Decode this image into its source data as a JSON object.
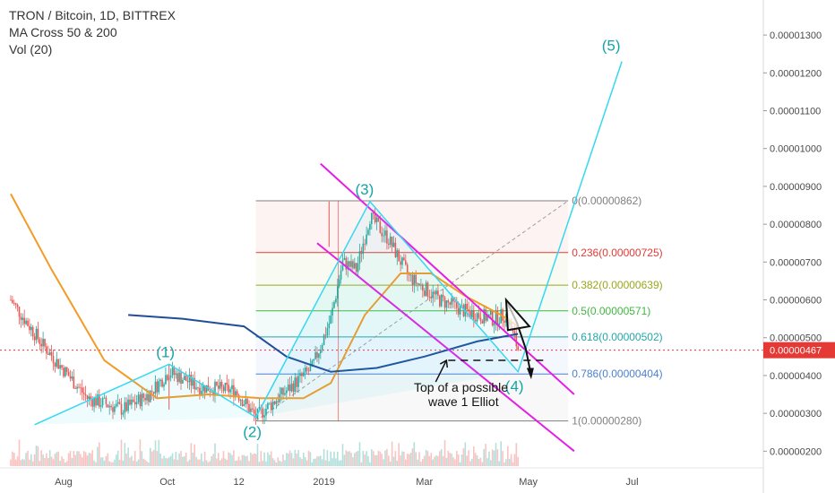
{
  "header": {
    "symbol_line": "TRON / Bitcoin, 1D, BITTREX",
    "indicator_1": "MA Cross 50 & 200",
    "indicator_2": "Vol (20)"
  },
  "colors": {
    "background": "#ffffff",
    "candle_up": "#26a69a",
    "candle_down": "#ef5350",
    "ma50": "#f29b26",
    "ma200": "#1f4e99",
    "channel": "#e41ee4",
    "wave_path": "#36d8f0",
    "wave_label": "#14a5a5",
    "current_price": "#e53935",
    "fib_0": "#808080",
    "fib_0236": "#e53935",
    "fib_0382": "#9aa61d",
    "fib_05": "#3fb83f",
    "fib_0618": "#22a7a7",
    "fib_0786": "#4a7fd6",
    "fib_1": "#808080"
  },
  "chart_data": {
    "type": "candlestick",
    "x_axis": {
      "scale": "time",
      "tick_labels": [
        "Aug",
        "Oct",
        "12",
        "2019",
        "Mar",
        "May",
        "Jul"
      ]
    },
    "y_axis": {
      "position": "right",
      "range": [
        1.6e-06,
        1.4e-06
      ],
      "ylim": [
        1.6e-06,
        1.4e-06
      ],
      "tick_labels": [
        "0.00001300",
        "0.00001200",
        "0.00001100",
        "0.00001000",
        "0.00000900",
        "0.00000800",
        "0.00000700",
        "0.00000600",
        "0.00000500",
        "0.00000400",
        "0.00000300",
        "0.00000200"
      ],
      "tick_values": [
        1.3e-05,
        1.2e-05,
        1.1e-05,
        1e-05,
        9e-06,
        8e-06,
        7e-06,
        6e-06,
        5e-06,
        4e-06,
        3e-06,
        2e-06
      ]
    },
    "current_price": {
      "label": "0.00000467",
      "value": 4.67e-06
    },
    "fibonacci": [
      {
        "level": "0",
        "price": "0.00000862",
        "label": "0(0.00000862)",
        "value": 8.62e-06
      },
      {
        "level": "0.236",
        "price": "0.00000725",
        "label": "0.236(0.00000725)",
        "value": 7.25e-06
      },
      {
        "level": "0.382",
        "price": "0.00000639",
        "label": "0.382(0.00000639)",
        "value": 6.39e-06
      },
      {
        "level": "0.5",
        "price": "0.00000571",
        "label": "0.5(0.00000571)",
        "value": 5.71e-06
      },
      {
        "level": "0.618",
        "price": "0.00000502",
        "label": "0.618(0.00000502)",
        "value": 5.02e-06
      },
      {
        "level": "0.786",
        "price": "0.00000404",
        "label": "0.786(0.00000404)",
        "value": 4.04e-06
      },
      {
        "level": "1",
        "price": "0.00000280",
        "label": "1(0.00000280)",
        "value": 2.8e-06
      }
    ],
    "elliott_waves": [
      {
        "label": "(1)",
        "date": "2018-10-02",
        "price": 4.3e-06
      },
      {
        "label": "(2)",
        "date": "2018-11-22",
        "price": 2.9e-06
      },
      {
        "label": "(3)",
        "date": "2019-01-28",
        "price": 8.6e-06
      },
      {
        "label": "(4)",
        "date": "2019-04-25",
        "price": 4.1e-06
      },
      {
        "label": "(5)",
        "date": "2019-06-25",
        "price": 1.23e-05
      }
    ],
    "wave_path_points": [
      {
        "date": "2018-07-15",
        "price": 2.7e-06
      },
      {
        "date": "2018-10-02",
        "price": 4.3e-06
      },
      {
        "date": "2018-11-22",
        "price": 2.9e-06
      },
      {
        "date": "2019-01-28",
        "price": 8.6e-06
      },
      {
        "date": "2019-04-25",
        "price": 4.1e-06
      },
      {
        "date": "2019-06-25",
        "price": 1.23e-05
      }
    ],
    "annotation": {
      "line1": "Top of a possible",
      "line2": "wave 1 Elliot"
    },
    "series": [
      {
        "name": "MA Cross 50 & 200",
        "type": "line",
        "description_color": "orange"
      },
      {
        "name": "MA Cross 50 & 200",
        "type": "line",
        "description_color": "navy"
      }
    ],
    "volume": {
      "name": "Vol (20)"
    }
  }
}
